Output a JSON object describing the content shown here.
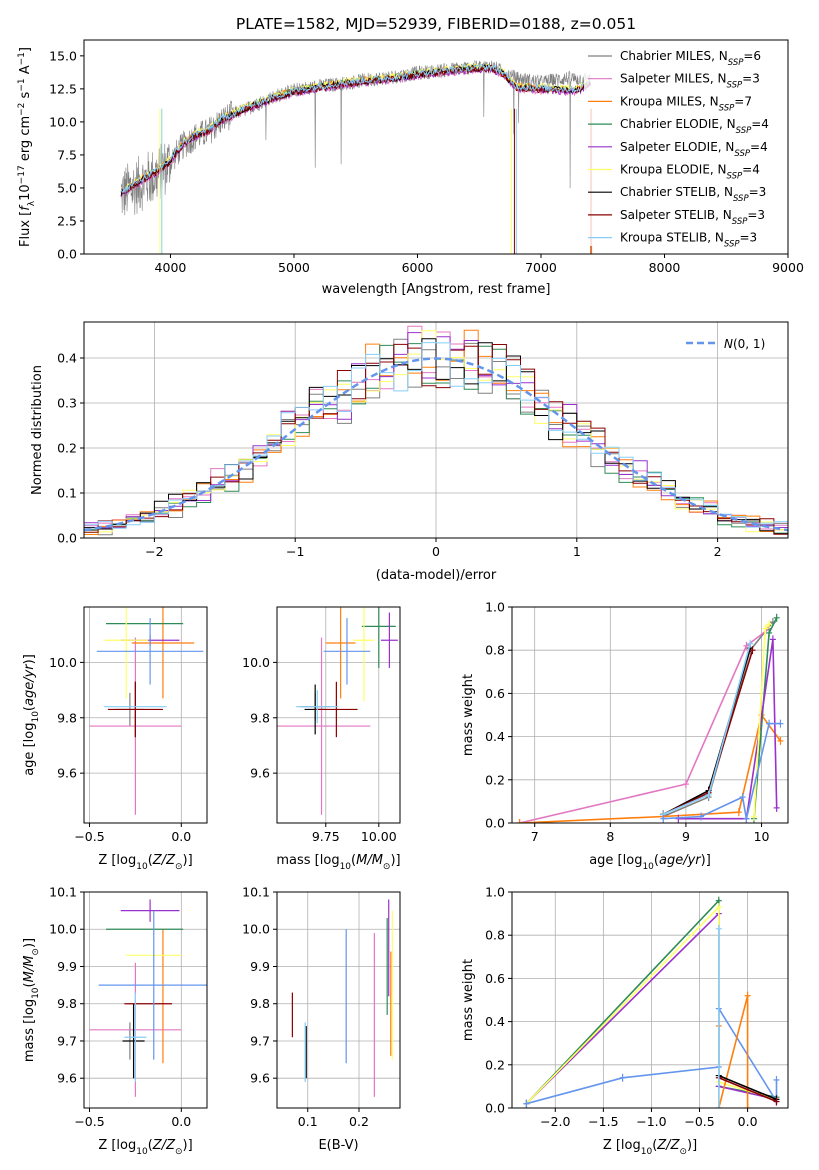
{
  "title": "PLATE=1582, MJD=52939, FIBERID=0188, z=0.051",
  "colors": {
    "Chabrier MILES": "#808080",
    "Salpeter MILES": "#e377c2",
    "Kroupa MILES": "#ff7f0e",
    "Chabrier ELODIE": "#2e8b57",
    "Salpeter ELODIE": "#9932cc",
    "Kroupa ELODIE": "#ffff66",
    "Chabrier STELIB": "#000000",
    "Salpeter STELIB": "#8b0000",
    "Kroupa STELIB": "#87cefa",
    "normal": "#6495ed"
  },
  "chart_data": [
    {
      "id": "spectrum",
      "type": "line",
      "title": "PLATE=1582, MJD=52939, FIBERID=0188, z=0.051",
      "xlabel": "wavelength [Angstrom, rest frame]",
      "ylabel": "Flux [f_λ10^-17 erg cm^-2 s^-1 A^-1]",
      "xlim": [
        3300,
        9000
      ],
      "ylim": [
        0,
        16.2
      ],
      "xticks": [
        4000,
        5000,
        6000,
        7000,
        8000,
        9000
      ],
      "yticks": [
        0.0,
        2.5,
        5.0,
        7.5,
        10.0,
        12.5,
        15.0
      ],
      "legend_position": "right",
      "data_wavelength": [
        3600,
        3700,
        3800,
        3900,
        4000,
        4100,
        4200,
        4300,
        4400,
        4500,
        4600,
        4800,
        5000,
        5200,
        5400,
        5600,
        5800,
        6000,
        6200,
        6400,
        6600,
        6800,
        7000,
        7200,
        7400
      ],
      "data_flux": [
        4.5,
        5.0,
        5.6,
        6.0,
        7.0,
        8.2,
        8.9,
        9.2,
        10.0,
        10.6,
        10.9,
        11.8,
        12.4,
        12.7,
        12.9,
        13.2,
        13.4,
        13.7,
        13.9,
        14.1,
        14.2,
        13.3,
        13.0,
        13.3,
        13.2
      ],
      "model_wavelength": [
        3600,
        3700,
        3800,
        3900,
        4000,
        4100,
        4200,
        4300,
        4400,
        4500,
        4600,
        4800,
        5000,
        5200,
        5400,
        5600,
        5800,
        6000,
        6200,
        6400,
        6600,
        6700,
        6800,
        7000,
        7200,
        7300,
        7400
      ],
      "model_flux": [
        4.6,
        5.2,
        5.8,
        6.3,
        7.1,
        8.3,
        9.0,
        9.3,
        10.1,
        10.5,
        11.0,
        11.7,
        12.3,
        12.6,
        12.9,
        13.1,
        13.3,
        13.6,
        13.8,
        14.0,
        14.1,
        13.6,
        12.6,
        12.5,
        12.4,
        12.4,
        13.0
      ],
      "series": [
        {
          "name": "Chabrier MILES, N_SSP=6"
        },
        {
          "name": "Salpeter MILES, N_SSP=3"
        },
        {
          "name": "Kroupa MILES, N_SSP=7"
        },
        {
          "name": "Chabrier ELODIE, N_SSP=4"
        },
        {
          "name": "Salpeter ELODIE, N_SSP=4"
        },
        {
          "name": "Kroupa ELODIE, N_SSP=4"
        },
        {
          "name": "Chabrier STELIB, N_SSP=3"
        },
        {
          "name": "Salpeter STELIB, N_SSP=3"
        },
        {
          "name": "Kroupa STELIB, N_SSP=3"
        }
      ]
    },
    {
      "id": "residuals",
      "type": "line",
      "xlabel": "(data-model)/error",
      "ylabel": "Normed distribution",
      "xlim": [
        -2.5,
        2.5
      ],
      "ylim": [
        0,
        0.48
      ],
      "xticks": [
        -2,
        -1,
        0,
        1,
        2
      ],
      "yticks": [
        0.0,
        0.1,
        0.2,
        0.3,
        0.4
      ],
      "grid": true,
      "legend": "N(0,1)",
      "legend_position": "top-right",
      "bin_width": 0.1
    },
    {
      "id": "age_vs_z",
      "type": "scatter",
      "xlabel": "Z [log10(Z/Z⊙)]",
      "ylabel": "age  [log10(age/yr)]",
      "xlim": [
        -0.53,
        0.14
      ],
      "ylim": [
        9.42,
        10.2
      ],
      "xticks": [
        -0.5,
        0.0
      ],
      "yticks": [
        9.6,
        9.8,
        10.0
      ],
      "grid": true,
      "points": [
        {
          "series": "Chabrier MILES",
          "x": -0.28,
          "y": 9.83,
          "xerr": 0.08,
          "yerr": 0.06
        },
        {
          "series": "Salpeter MILES",
          "x": -0.25,
          "y": 9.77,
          "xerr": 0.25,
          "yerr": 0.32
        },
        {
          "series": "Kroupa MILES",
          "x": -0.1,
          "y": 10.07,
          "xerr": 0.17,
          "yerr": 0.2
        },
        {
          "series": "Chabrier ELODIE",
          "x": -0.2,
          "y": 10.14,
          "xerr": 0.21,
          "yerr": 0.0
        },
        {
          "series": "Salpeter ELODIE",
          "x": -0.17,
          "y": 10.08,
          "xerr": 0.16,
          "yerr": 0.02
        },
        {
          "series": "Kroupa ELODIE",
          "x": -0.3,
          "y": 10.08,
          "xerr": 0.12,
          "yerr": 0.21
        },
        {
          "series": "Chabrier STELIB",
          "x": -0.25,
          "y": 9.83,
          "xerr": 0.0,
          "yerr": 0.1
        },
        {
          "series": "Salpeter STELIB",
          "x": -0.25,
          "y": 9.83,
          "xerr": 0.15,
          "yerr": 0.1
        },
        {
          "series": "Kroupa STELIB",
          "x": -0.25,
          "y": 9.84,
          "xerr": 0.17,
          "yerr": 0.0
        },
        {
          "series": "normal",
          "x": -0.17,
          "y": 10.04,
          "xerr": 0.29,
          "yerr": 0.12
        }
      ]
    },
    {
      "id": "age_vs_mass",
      "type": "scatter",
      "xlabel": "mass [log10(M/M⊙)]",
      "ylabel": "",
      "xlim": [
        9.52,
        10.1
      ],
      "ylim": [
        9.42,
        10.2
      ],
      "xticks": [
        9.75,
        10.0
      ],
      "yticks": [
        9.6,
        9.8,
        10.0
      ],
      "grid": true,
      "points": [
        {
          "series": "Chabrier MILES",
          "x": 9.7,
          "y": 9.84,
          "xerr": 0.07,
          "yerr": 0.05
        },
        {
          "series": "Salpeter MILES",
          "x": 9.73,
          "y": 9.77,
          "xerr": 0.23,
          "yerr": 0.32
        },
        {
          "series": "Kroupa MILES",
          "x": 9.82,
          "y": 10.07,
          "xerr": 0.07,
          "yerr": 0.2
        },
        {
          "series": "Chabrier ELODIE",
          "x": 10.0,
          "y": 10.13,
          "xerr": 0.08,
          "yerr": 0.15
        },
        {
          "series": "Salpeter ELODIE",
          "x": 10.05,
          "y": 10.08,
          "xerr": 0.04,
          "yerr": 0.1
        },
        {
          "series": "Kroupa ELODIE",
          "x": 9.93,
          "y": 10.08,
          "xerr": 0.05,
          "yerr": 0.22
        },
        {
          "series": "Chabrier STELIB",
          "x": 9.7,
          "y": 9.83,
          "xerr": 0.05,
          "yerr": 0.09
        },
        {
          "series": "Salpeter STELIB",
          "x": 9.8,
          "y": 9.83,
          "xerr": 0.1,
          "yerr": 0.1
        },
        {
          "series": "Kroupa STELIB",
          "x": 9.71,
          "y": 9.84,
          "xerr": 0.1,
          "yerr": 0.06
        },
        {
          "series": "normal",
          "x": 9.85,
          "y": 10.04,
          "xerr": 0.11,
          "yerr": 0.12
        }
      ]
    },
    {
      "id": "age_weights",
      "type": "line",
      "xlabel": "age  [log10(age/yr)]",
      "ylabel": "mass weight",
      "xlim": [
        6.7,
        10.35
      ],
      "ylim": [
        0,
        1.0
      ],
      "xticks": [
        7,
        8,
        9,
        10
      ],
      "yticks": [
        0.0,
        0.2,
        0.4,
        0.6,
        0.8,
        1.0
      ],
      "grid": true,
      "series": [
        {
          "name": "Chabrier MILES",
          "x": [
            8.7,
            9.3,
            9.85,
            10.15
          ],
          "y": [
            0.03,
            0.12,
            0.8,
            0.93
          ]
        },
        {
          "name": "Salpeter MILES",
          "x": [
            6.8,
            9.0,
            9.8,
            10.1
          ],
          "y": [
            0.0,
            0.18,
            0.82,
            0.9
          ]
        },
        {
          "name": "Kroupa MILES",
          "x": [
            6.8,
            8.7,
            9.7,
            10.0,
            10.25
          ],
          "y": [
            0.0,
            0.03,
            0.05,
            0.5,
            0.38
          ]
        },
        {
          "name": "Chabrier ELODIE",
          "x": [
            9.9,
            10.1,
            10.2
          ],
          "y": [
            0.02,
            0.88,
            0.95
          ]
        },
        {
          "name": "Salpeter ELODIE",
          "x": [
            8.9,
            9.8,
            10.15,
            10.2
          ],
          "y": [
            0.02,
            0.02,
            0.85,
            0.07
          ]
        },
        {
          "name": "Kroupa ELODIE",
          "x": [
            9.9,
            10.05,
            10.1
          ],
          "y": [
            0.03,
            0.9,
            0.92
          ]
        },
        {
          "name": "Chabrier STELIB",
          "x": [
            8.7,
            9.3,
            9.85
          ],
          "y": [
            0.04,
            0.15,
            0.81
          ]
        },
        {
          "name": "Salpeter STELIB",
          "x": [
            8.7,
            9.3,
            9.88
          ],
          "y": [
            0.04,
            0.14,
            0.8
          ]
        },
        {
          "name": "Kroupa STELIB",
          "x": [
            8.7,
            9.3,
            9.85
          ],
          "y": [
            0.04,
            0.13,
            0.83
          ]
        },
        {
          "name": "normal",
          "x": [
            8.7,
            9.2,
            9.75,
            9.8,
            10.1,
            10.25
          ],
          "y": [
            0.02,
            0.03,
            0.12,
            0.02,
            0.46,
            0.46
          ]
        }
      ]
    },
    {
      "id": "mass_vs_z",
      "type": "scatter",
      "xlabel": "Z [log10(Z/Z⊙)]",
      "ylabel": "mass [log10(M/M⊙)]",
      "xlim": [
        -0.53,
        0.14
      ],
      "ylim": [
        9.52,
        10.1
      ],
      "xticks": [
        -0.5,
        0.0
      ],
      "yticks": [
        9.6,
        9.7,
        9.8,
        9.9,
        10.0,
        10.1
      ],
      "grid": true,
      "points": [
        {
          "series": "Chabrier MILES",
          "x": -0.28,
          "y": 9.7,
          "xerr": 0.0,
          "yerr": 0.05
        },
        {
          "series": "Salpeter MILES",
          "x": -0.25,
          "y": 9.73,
          "xerr": 0.25,
          "yerr": 0.18
        },
        {
          "series": "Kroupa MILES",
          "x": -0.1,
          "y": 9.82,
          "xerr": 0.0,
          "yerr": 0.18
        },
        {
          "series": "Chabrier ELODIE",
          "x": -0.2,
          "y": 10.0,
          "xerr": 0.21,
          "yerr": 0.0
        },
        {
          "series": "Salpeter ELODIE",
          "x": -0.17,
          "y": 10.05,
          "xerr": 0.16,
          "yerr": 0.03
        },
        {
          "series": "Kroupa ELODIE",
          "x": -0.15,
          "y": 9.93,
          "xerr": 0.15,
          "yerr": 0.0
        },
        {
          "series": "Chabrier STELIB",
          "x": -0.26,
          "y": 9.7,
          "xerr": 0.06,
          "yerr": 0.1
        },
        {
          "series": "Salpeter STELIB",
          "x": -0.18,
          "y": 9.8,
          "xerr": 0.13,
          "yerr": 0.0
        },
        {
          "series": "Kroupa STELIB",
          "x": -0.25,
          "y": 9.71,
          "xerr": 0.06,
          "yerr": 0.12
        },
        {
          "series": "normal",
          "x": -0.15,
          "y": 9.85,
          "xerr": 0.3,
          "yerr": 0.2
        }
      ]
    },
    {
      "id": "mass_vs_ebv",
      "type": "scatter",
      "xlabel": "E(B-V)",
      "ylabel": "",
      "xlim": [
        0.04,
        0.28
      ],
      "ylim": [
        9.52,
        10.1
      ],
      "xticks": [
        0.1,
        0.2
      ],
      "yticks": [
        9.6,
        9.7,
        9.8,
        9.9,
        10.0,
        10.1
      ],
      "grid": true,
      "points": [
        {
          "series": "Salpeter STELIB",
          "x": 0.07,
          "y": 9.77,
          "yerr": 0.06
        },
        {
          "series": "Chabrier STELIB",
          "x": 0.097,
          "y": 9.67,
          "yerr": 0.07
        },
        {
          "series": "Kroupa STELIB",
          "x": 0.095,
          "y": 9.67,
          "yerr": 0.08
        },
        {
          "series": "normal",
          "x": 0.175,
          "y": 9.82,
          "yerr": 0.18
        },
        {
          "series": "Salpeter MILES",
          "x": 0.23,
          "y": 9.77,
          "yerr": 0.22
        },
        {
          "series": "Chabrier ELODIE",
          "x": 0.255,
          "y": 9.9,
          "yerr": 0.13
        },
        {
          "series": "Salpeter ELODIE",
          "x": 0.258,
          "y": 9.95,
          "yerr": 0.13
        },
        {
          "series": "Kroupa MILES",
          "x": 0.262,
          "y": 9.8,
          "yerr": 0.14
        },
        {
          "series": "Kroupa ELODIE",
          "x": 0.265,
          "y": 9.85,
          "yerr": 0.2
        }
      ]
    },
    {
      "id": "z_weights",
      "type": "line",
      "xlabel": "Z [log10(Z/Z⊙)]",
      "ylabel": "mass weight",
      "xlim": [
        -2.45,
        0.42
      ],
      "ylim": [
        0,
        1.0
      ],
      "xticks": [
        -2.0,
        -1.5,
        -1.0,
        -0.5,
        0.0
      ],
      "yticks": [
        0.0,
        0.2,
        0.4,
        0.6,
        0.8,
        1.0
      ],
      "grid": true,
      "series": [
        {
          "name": "Chabrier ELODIE",
          "x": [
            -2.3,
            -0.3,
            -0.3,
            0.3
          ],
          "y": [
            0.02,
            0.96,
            0.1,
            0.05
          ]
        },
        {
          "name": "Salpeter ELODIE",
          "x": [
            -2.3,
            -0.3,
            -0.3,
            0.3
          ],
          "y": [
            0.02,
            0.9,
            0.1,
            0.04
          ]
        },
        {
          "name": "Kroupa ELODIE",
          "x": [
            -2.3,
            -0.3,
            -0.3,
            0.3
          ],
          "y": [
            0.02,
            0.93,
            0.12,
            0.04
          ]
        },
        {
          "name": "normal",
          "x": [
            -2.3,
            -1.3,
            -0.3,
            -0.3,
            0.3,
            0.3
          ],
          "y": [
            0.02,
            0.14,
            0.19,
            0.46,
            0.03,
            0.13
          ]
        },
        {
          "name": "Kroupa MILES",
          "x": [
            -0.3,
            -0.3,
            0.0,
            0.0
          ],
          "y": [
            0.38,
            0.0,
            0.52,
            0.0
          ]
        },
        {
          "name": "Chabrier STELIB",
          "x": [
            -0.3,
            0.3
          ],
          "y": [
            0.15,
            0.04
          ]
        },
        {
          "name": "Salpeter STELIB",
          "x": [
            -0.3,
            0.3
          ],
          "y": [
            0.14,
            0.03
          ]
        },
        {
          "name": "Kroupa STELIB",
          "x": [
            -0.3,
            -0.3
          ],
          "y": [
            0.83,
            0.0
          ]
        }
      ]
    }
  ]
}
